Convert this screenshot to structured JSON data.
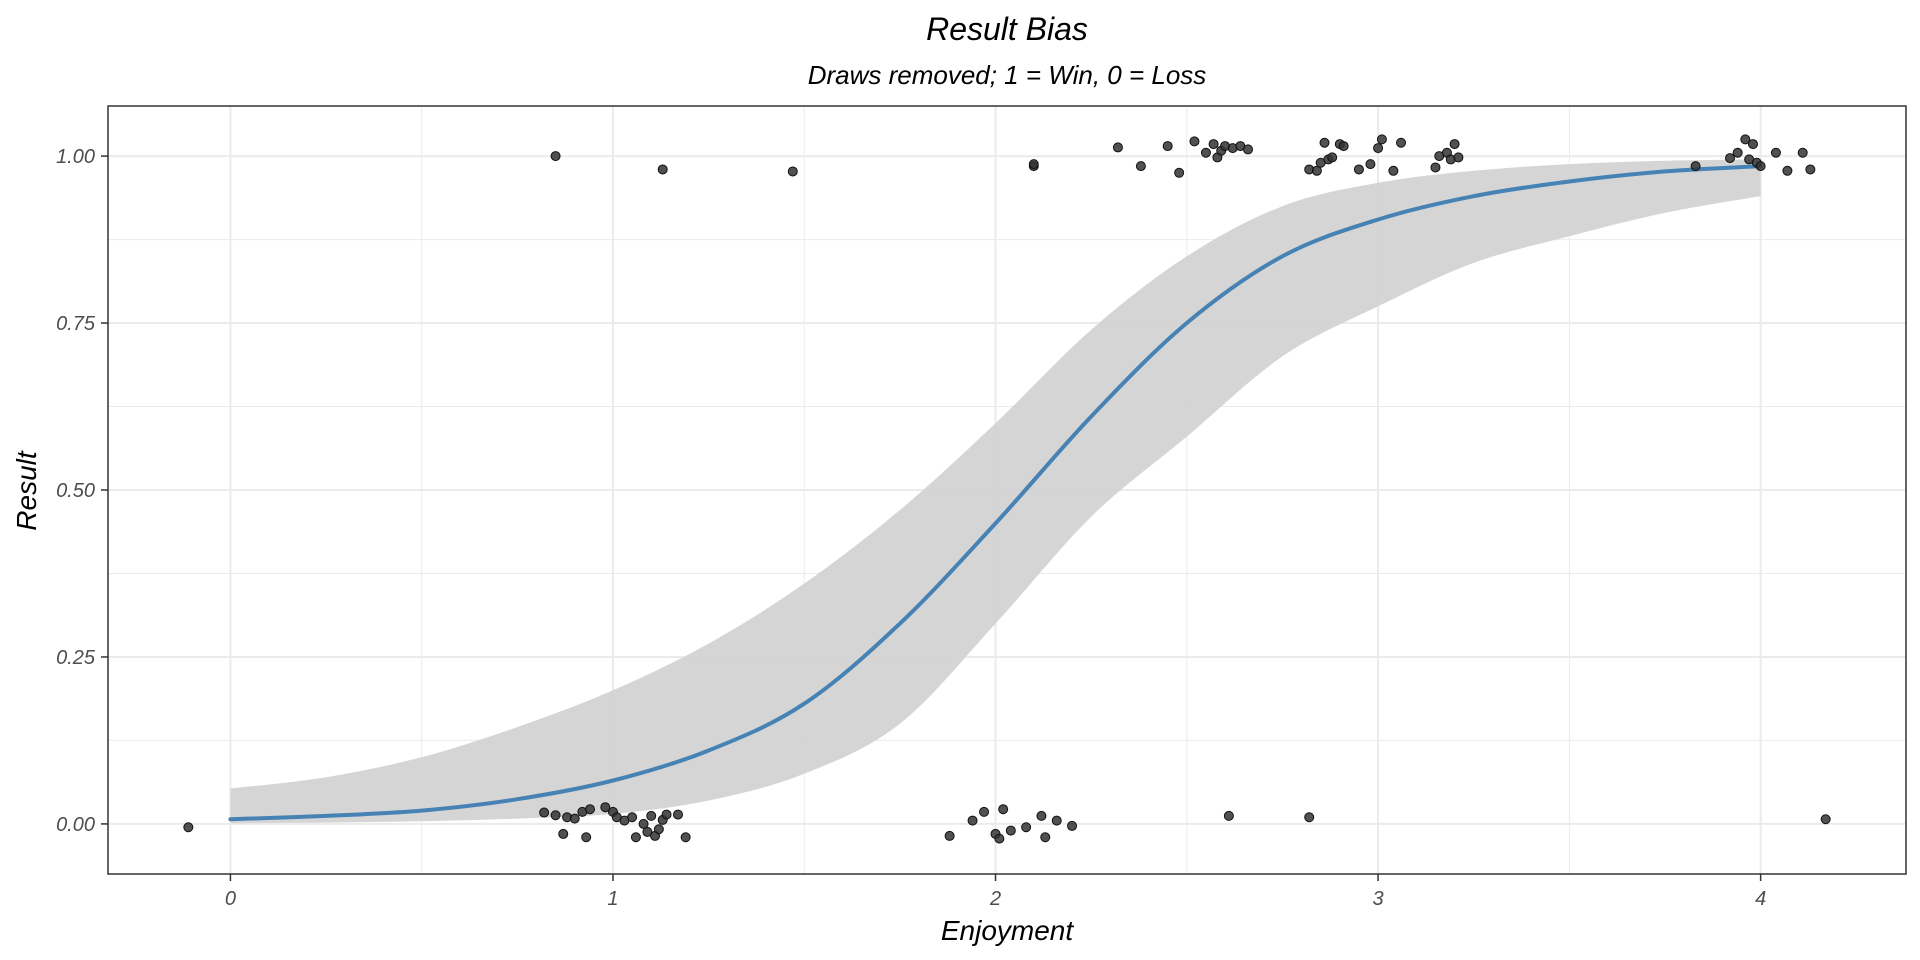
{
  "chart_data": {
    "type": "scatter",
    "title": "Result Bias",
    "subtitle": "Draws removed; 1 = Win, 0 = Loss",
    "xlabel": "Enjoyment",
    "ylabel": "Result",
    "xlim": [
      -0.32,
      4.38
    ],
    "ylim": [
      -0.075,
      1.075
    ],
    "x_ticks": [
      0,
      1,
      2,
      3,
      4
    ],
    "x_tick_labels": [
      "0",
      "1",
      "2",
      "3",
      "4"
    ],
    "y_ticks": [
      0,
      0.25,
      0.5,
      0.75,
      1
    ],
    "y_tick_labels": [
      "0.00",
      "0.25",
      "0.50",
      "0.75",
      "1.00"
    ],
    "grid": true,
    "colors": {
      "points": "#333333",
      "fit_line": "#4682b4",
      "ribbon": "#d3d3d3",
      "panel_border": "#333333",
      "grid": "#ebebeb",
      "tick_label": "#4d4d4d"
    },
    "points": [
      {
        "x": -0.11,
        "y": -0.005
      },
      {
        "x": 0.82,
        "y": 0.017
      },
      {
        "x": 0.85,
        "y": 0.013
      },
      {
        "x": 0.87,
        "y": -0.015
      },
      {
        "x": 0.88,
        "y": 0.01
      },
      {
        "x": 0.9,
        "y": 0.008
      },
      {
        "x": 0.92,
        "y": 0.018
      },
      {
        "x": 0.93,
        "y": -0.02
      },
      {
        "x": 0.94,
        "y": 0.022
      },
      {
        "x": 0.98,
        "y": 0.025
      },
      {
        "x": 1.0,
        "y": 0.018
      },
      {
        "x": 1.01,
        "y": 0.01
      },
      {
        "x": 1.03,
        "y": 0.005
      },
      {
        "x": 1.05,
        "y": 0.01
      },
      {
        "x": 1.06,
        "y": -0.02
      },
      {
        "x": 1.08,
        "y": 0.0
      },
      {
        "x": 1.09,
        "y": -0.012
      },
      {
        "x": 1.1,
        "y": 0.012
      },
      {
        "x": 1.11,
        "y": -0.018
      },
      {
        "x": 1.12,
        "y": -0.008
      },
      {
        "x": 1.13,
        "y": 0.006
      },
      {
        "x": 1.14,
        "y": 0.014
      },
      {
        "x": 1.17,
        "y": 0.014
      },
      {
        "x": 1.19,
        "y": -0.02
      },
      {
        "x": 1.88,
        "y": -0.018
      },
      {
        "x": 1.94,
        "y": 0.005
      },
      {
        "x": 1.97,
        "y": 0.018
      },
      {
        "x": 2.0,
        "y": -0.015
      },
      {
        "x": 2.01,
        "y": -0.022
      },
      {
        "x": 2.02,
        "y": 0.022
      },
      {
        "x": 2.04,
        "y": -0.01
      },
      {
        "x": 2.08,
        "y": -0.005
      },
      {
        "x": 2.12,
        "y": 0.012
      },
      {
        "x": 2.13,
        "y": -0.02
      },
      {
        "x": 2.16,
        "y": 0.005
      },
      {
        "x": 2.2,
        "y": -0.003
      },
      {
        "x": 2.61,
        "y": 0.012
      },
      {
        "x": 2.82,
        "y": 0.01
      },
      {
        "x": 4.17,
        "y": 0.007
      },
      {
        "x": 0.85,
        "y": 1.0
      },
      {
        "x": 1.13,
        "y": 0.98
      },
      {
        "x": 1.47,
        "y": 0.977
      },
      {
        "x": 2.1,
        "y": 0.985
      },
      {
        "x": 2.1,
        "y": 0.988
      },
      {
        "x": 2.32,
        "y": 1.013
      },
      {
        "x": 2.38,
        "y": 0.985
      },
      {
        "x": 2.45,
        "y": 1.015
      },
      {
        "x": 2.48,
        "y": 0.975
      },
      {
        "x": 2.52,
        "y": 1.022
      },
      {
        "x": 2.55,
        "y": 1.005
      },
      {
        "x": 2.57,
        "y": 1.018
      },
      {
        "x": 2.58,
        "y": 0.998
      },
      {
        "x": 2.59,
        "y": 1.008
      },
      {
        "x": 2.6,
        "y": 1.015
      },
      {
        "x": 2.62,
        "y": 1.012
      },
      {
        "x": 2.64,
        "y": 1.015
      },
      {
        "x": 2.66,
        "y": 1.01
      },
      {
        "x": 2.82,
        "y": 0.98
      },
      {
        "x": 2.84,
        "y": 0.978
      },
      {
        "x": 2.85,
        "y": 0.99
      },
      {
        "x": 2.86,
        "y": 1.02
      },
      {
        "x": 2.87,
        "y": 0.995
      },
      {
        "x": 2.88,
        "y": 0.998
      },
      {
        "x": 2.9,
        "y": 1.018
      },
      {
        "x": 2.91,
        "y": 1.015
      },
      {
        "x": 2.95,
        "y": 0.98
      },
      {
        "x": 2.98,
        "y": 0.988
      },
      {
        "x": 3.0,
        "y": 1.012
      },
      {
        "x": 3.01,
        "y": 1.025
      },
      {
        "x": 3.04,
        "y": 0.978
      },
      {
        "x": 3.06,
        "y": 1.02
      },
      {
        "x": 3.15,
        "y": 0.983
      },
      {
        "x": 3.16,
        "y": 1.0
      },
      {
        "x": 3.18,
        "y": 1.005
      },
      {
        "x": 3.19,
        "y": 0.995
      },
      {
        "x": 3.2,
        "y": 1.018
      },
      {
        "x": 3.21,
        "y": 0.998
      },
      {
        "x": 3.83,
        "y": 0.985
      },
      {
        "x": 3.92,
        "y": 0.997
      },
      {
        "x": 3.94,
        "y": 1.005
      },
      {
        "x": 3.96,
        "y": 1.025
      },
      {
        "x": 3.97,
        "y": 0.995
      },
      {
        "x": 3.98,
        "y": 1.018
      },
      {
        "x": 3.99,
        "y": 0.99
      },
      {
        "x": 4.0,
        "y": 0.985
      },
      {
        "x": 4.04,
        "y": 1.005
      },
      {
        "x": 4.07,
        "y": 0.978
      },
      {
        "x": 4.11,
        "y": 1.005
      },
      {
        "x": 4.13,
        "y": 0.98
      }
    ],
    "fit": {
      "x": [
        0,
        0.25,
        0.5,
        0.75,
        1.0,
        1.25,
        1.5,
        1.75,
        2.0,
        2.25,
        2.5,
        2.75,
        3.0,
        3.25,
        3.5,
        3.75,
        4.0
      ],
      "y": [
        0.007,
        0.012,
        0.02,
        0.037,
        0.065,
        0.11,
        0.18,
        0.3,
        0.45,
        0.61,
        0.75,
        0.85,
        0.905,
        0.94,
        0.962,
        0.977,
        0.985
      ],
      "lower": [
        0.001,
        0.002,
        0.004,
        0.008,
        0.015,
        0.035,
        0.075,
        0.15,
        0.3,
        0.46,
        0.58,
        0.7,
        0.775,
        0.84,
        0.88,
        0.915,
        0.94
      ],
      "upper": [
        0.053,
        0.07,
        0.1,
        0.145,
        0.2,
        0.27,
        0.36,
        0.47,
        0.6,
        0.74,
        0.85,
        0.925,
        0.96,
        0.978,
        0.988,
        0.993,
        0.995
      ]
    }
  }
}
